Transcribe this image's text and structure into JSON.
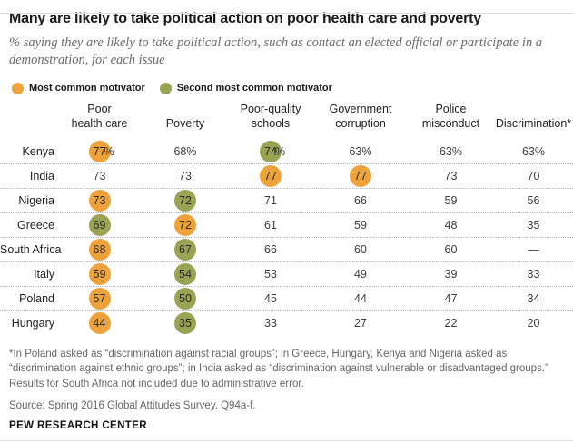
{
  "header": {
    "title": "Many are likely to take political action on poor health care and poverty",
    "subtitle": "% saying they are likely to take political action, such as contact an elected official or participate in a demonstration, for each issue"
  },
  "colors": {
    "most": "#eda23c",
    "second": "#9aa353"
  },
  "legend": {
    "most_label": "Most common motivator",
    "second_label": "Second most common motivator"
  },
  "table": {
    "columns": [
      "Poor\nhealth care",
      "Poverty",
      "Poor-quality\nschools",
      "Government\ncorruption",
      "Police\nmisconduct",
      "Discrimination*"
    ],
    "rows": [
      {
        "country": "Kenya",
        "values": [
          {
            "v": "77",
            "suffix": "%",
            "hl": "most"
          },
          {
            "v": "68%"
          },
          {
            "v": "74",
            "suffix": "%",
            "hl": "second"
          },
          {
            "v": "63%"
          },
          {
            "v": "63%"
          },
          {
            "v": "63%"
          }
        ]
      },
      {
        "country": "India",
        "values": [
          {
            "v": "73"
          },
          {
            "v": "73"
          },
          {
            "v": "77",
            "hl": "most"
          },
          {
            "v": "77",
            "hl": "most"
          },
          {
            "v": "73"
          },
          {
            "v": "70"
          }
        ]
      },
      {
        "country": "Nigeria",
        "values": [
          {
            "v": "73",
            "hl": "most"
          },
          {
            "v": "72",
            "hl": "second"
          },
          {
            "v": "71"
          },
          {
            "v": "66"
          },
          {
            "v": "59"
          },
          {
            "v": "56"
          }
        ]
      },
      {
        "country": "Greece",
        "values": [
          {
            "v": "69",
            "hl": "second"
          },
          {
            "v": "72",
            "hl": "most"
          },
          {
            "v": "61"
          },
          {
            "v": "59"
          },
          {
            "v": "48"
          },
          {
            "v": "35"
          }
        ]
      },
      {
        "country": "South Africa",
        "values": [
          {
            "v": "68",
            "hl": "most"
          },
          {
            "v": "67",
            "hl": "second"
          },
          {
            "v": "66"
          },
          {
            "v": "60"
          },
          {
            "v": "60"
          },
          {
            "v": "—"
          }
        ]
      },
      {
        "country": "Italy",
        "values": [
          {
            "v": "59",
            "hl": "most"
          },
          {
            "v": "54",
            "hl": "second"
          },
          {
            "v": "53"
          },
          {
            "v": "49"
          },
          {
            "v": "39"
          },
          {
            "v": "33"
          }
        ]
      },
      {
        "country": "Poland",
        "values": [
          {
            "v": "57",
            "hl": "most"
          },
          {
            "v": "50",
            "hl": "second"
          },
          {
            "v": "45"
          },
          {
            "v": "44"
          },
          {
            "v": "47"
          },
          {
            "v": "34"
          }
        ]
      },
      {
        "country": "Hungary",
        "values": [
          {
            "v": "44",
            "hl": "most"
          },
          {
            "v": "35",
            "hl": "second"
          },
          {
            "v": "33"
          },
          {
            "v": "27"
          },
          {
            "v": "22"
          },
          {
            "v": "20"
          }
        ]
      }
    ]
  },
  "footer": {
    "footnote": "*In Poland asked as “discrimination against racial groups”; in Greece, Hungary, Kenya and Nigeria asked as “discrimination against ethnic groups”; in India asked as “discrimination against vulnerable or disadvantaged groups.” Results for South Africa not included due to administrative error.",
    "source": "Source: Spring 2016 Global Attitudes Survey. Q94a-f.",
    "brand": "PEW RESEARCH CENTER"
  },
  "chart_data": {
    "type": "table",
    "title": "Many are likely to take political action on poor health care and poverty",
    "subtitle": "% saying they are likely to take political action, such as contact an elected official or participate in a demonstration, for each issue",
    "unit": "%",
    "categories": [
      "Poor health care",
      "Poverty",
      "Poor-quality schools",
      "Government corruption",
      "Police misconduct",
      "Discrimination"
    ],
    "series": [
      {
        "name": "Kenya",
        "values": [
          77,
          68,
          74,
          63,
          63,
          63
        ],
        "most_common": [
          "Poor health care"
        ],
        "second_most_common": [
          "Poor-quality schools"
        ]
      },
      {
        "name": "India",
        "values": [
          73,
          73,
          77,
          77,
          73,
          70
        ],
        "most_common": [
          "Poor-quality schools",
          "Government corruption"
        ],
        "second_most_common": []
      },
      {
        "name": "Nigeria",
        "values": [
          73,
          72,
          71,
          66,
          59,
          56
        ],
        "most_common": [
          "Poor health care"
        ],
        "second_most_common": [
          "Poverty"
        ]
      },
      {
        "name": "Greece",
        "values": [
          69,
          72,
          61,
          59,
          48,
          35
        ],
        "most_common": [
          "Poverty"
        ],
        "second_most_common": [
          "Poor health care"
        ]
      },
      {
        "name": "South Africa",
        "values": [
          68,
          67,
          66,
          60,
          60,
          null
        ],
        "most_common": [
          "Poor health care"
        ],
        "second_most_common": [
          "Poverty"
        ]
      },
      {
        "name": "Italy",
        "values": [
          59,
          54,
          53,
          49,
          39,
          33
        ],
        "most_common": [
          "Poor health care"
        ],
        "second_most_common": [
          "Poverty"
        ]
      },
      {
        "name": "Poland",
        "values": [
          57,
          50,
          45,
          44,
          47,
          34
        ],
        "most_common": [
          "Poor health care"
        ],
        "second_most_common": [
          "Poverty"
        ]
      },
      {
        "name": "Hungary",
        "values": [
          44,
          35,
          33,
          27,
          22,
          20
        ],
        "most_common": [
          "Poor health care"
        ],
        "second_most_common": [
          "Poverty"
        ]
      }
    ],
    "legend": [
      "Most common motivator",
      "Second most common motivator"
    ],
    "legend_position": "top-left",
    "highlight_colors": {
      "most_common": "#eda23c",
      "second_most_common": "#9aa353"
    }
  }
}
